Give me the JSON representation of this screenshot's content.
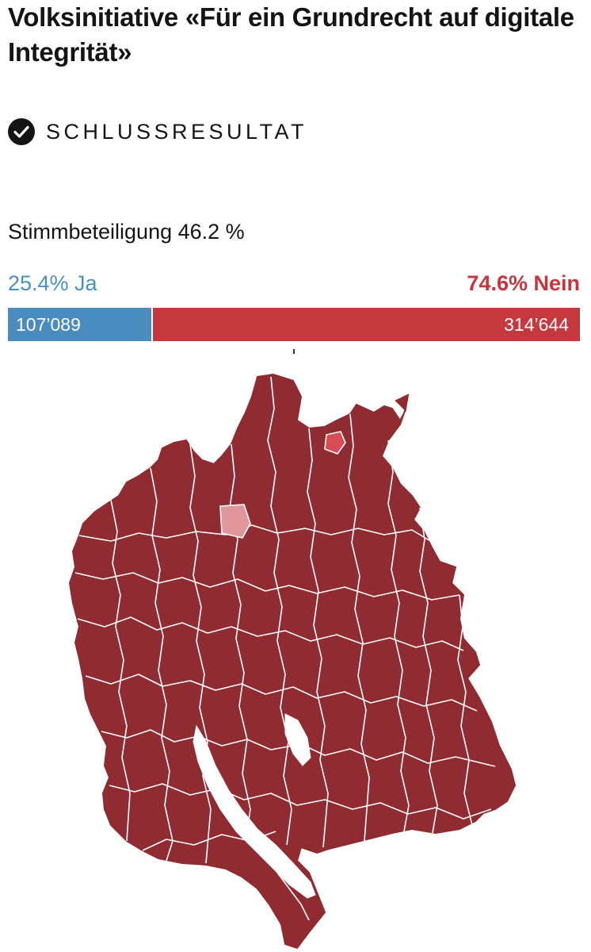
{
  "title": "Volksinitiative «Für ein Grundrecht auf digitale Integrität»",
  "status": {
    "label": "SCHLUSSRESULTAT",
    "icon": "check-circle-icon"
  },
  "turnout": {
    "text": "Stimmbeteiligung 46.2 %",
    "value_percent": 46.2
  },
  "result": {
    "yes": {
      "label": "25.4% Ja",
      "percent": 25.4,
      "votes_label": "107’089",
      "color": "#4a8cbf"
    },
    "no": {
      "label": "74.6% Nein",
      "percent": 74.6,
      "votes_label": "314’644",
      "color": "#c4383e"
    }
  },
  "map": {
    "colors": {
      "strong_no": "#8f2b31",
      "moderate_no": "#d84b52",
      "weak_no": "#e0969a",
      "border": "#ffffff",
      "lake": "#ffffff"
    }
  }
}
